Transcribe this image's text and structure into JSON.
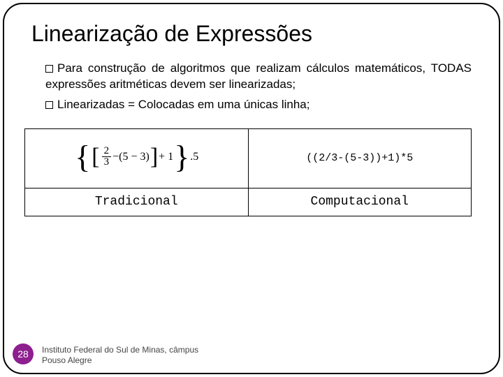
{
  "title": "Linearização de Expressões",
  "bullets": {
    "b1": "Para construção de algoritmos que realizam cálculos matemáticos, TODAS expressões aritméticas devem ser linearizadas;",
    "b2": "Linearizadas = Colocadas em uma únicas linha;"
  },
  "table": {
    "computational_expr": "((2/3-(5-3))+1)*5",
    "label_traditional": "Tradicional",
    "label_computational": "Computacional",
    "frac_num": "2",
    "frac_den": "3",
    "minus": "−",
    "paren_inner": "(5 − 3)",
    "plus_tail": "+ 1",
    "dot_five": ".5"
  },
  "page_number": "28",
  "footer_line1": "Instituto Federal do Sul de Minas, câmpus",
  "footer_line2": "Pouso Alegre",
  "colors": {
    "accent": "#8d1f8f",
    "border": "#000000",
    "background": "#ffffff",
    "footer_text": "#444444"
  }
}
